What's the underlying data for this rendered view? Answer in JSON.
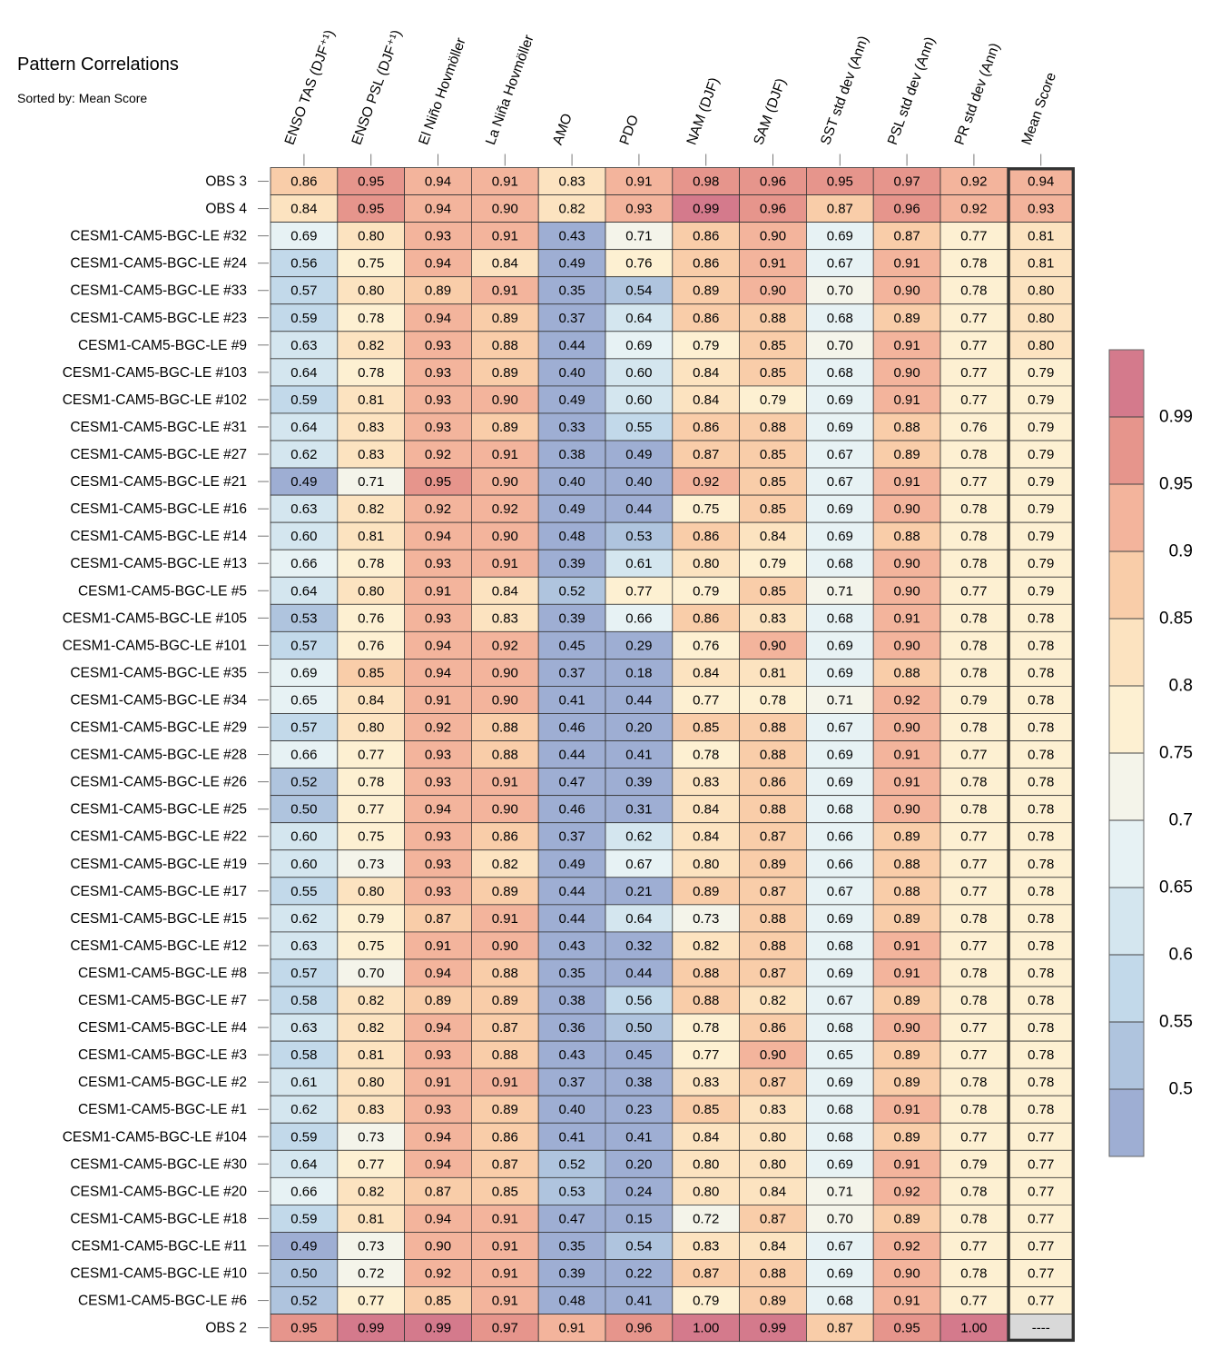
{
  "chart_data": {
    "type": "heatmap",
    "title": "Pattern Correlations",
    "subtitle": "Sorted by: Mean Score",
    "columns": [
      "ENSO TAS (DJF⁺¹)",
      "ENSO PSL (DJF⁺¹)",
      "El Niño Hovmöller",
      "La Niña Hovmöller",
      "AMO",
      "PDO",
      "NAM (DJF)",
      "SAM (DJF)",
      "SST std dev (Ann)",
      "PSL std dev (Ann)",
      "PR std dev (Ann)",
      "Mean Score"
    ],
    "rows": [
      {
        "label": "OBS 3",
        "values": [
          "0.86",
          "0.95",
          "0.94",
          "0.91",
          "0.83",
          "0.91",
          "0.98",
          "0.96",
          "0.95",
          "0.97",
          "0.92",
          "0.94"
        ]
      },
      {
        "label": "OBS 4",
        "values": [
          "0.84",
          "0.95",
          "0.94",
          "0.90",
          "0.82",
          "0.93",
          "0.99",
          "0.96",
          "0.87",
          "0.96",
          "0.92",
          "0.93"
        ]
      },
      {
        "label": "CESM1-CAM5-BGC-LE #32",
        "values": [
          "0.69",
          "0.80",
          "0.93",
          "0.91",
          "0.43",
          "0.71",
          "0.86",
          "0.90",
          "0.69",
          "0.87",
          "0.77",
          "0.81"
        ]
      },
      {
        "label": "CESM1-CAM5-BGC-LE #24",
        "values": [
          "0.56",
          "0.75",
          "0.94",
          "0.84",
          "0.49",
          "0.76",
          "0.86",
          "0.91",
          "0.67",
          "0.91",
          "0.78",
          "0.81"
        ]
      },
      {
        "label": "CESM1-CAM5-BGC-LE #33",
        "values": [
          "0.57",
          "0.80",
          "0.89",
          "0.91",
          "0.35",
          "0.54",
          "0.89",
          "0.90",
          "0.70",
          "0.90",
          "0.78",
          "0.80"
        ]
      },
      {
        "label": "CESM1-CAM5-BGC-LE #23",
        "values": [
          "0.59",
          "0.78",
          "0.94",
          "0.89",
          "0.37",
          "0.64",
          "0.86",
          "0.88",
          "0.68",
          "0.89",
          "0.77",
          "0.80"
        ]
      },
      {
        "label": "CESM1-CAM5-BGC-LE #9",
        "values": [
          "0.63",
          "0.82",
          "0.93",
          "0.88",
          "0.44",
          "0.69",
          "0.79",
          "0.85",
          "0.70",
          "0.91",
          "0.77",
          "0.80"
        ]
      },
      {
        "label": "CESM1-CAM5-BGC-LE #103",
        "values": [
          "0.64",
          "0.78",
          "0.93",
          "0.89",
          "0.40",
          "0.60",
          "0.84",
          "0.85",
          "0.68",
          "0.90",
          "0.77",
          "0.79"
        ]
      },
      {
        "label": "CESM1-CAM5-BGC-LE #102",
        "values": [
          "0.59",
          "0.81",
          "0.93",
          "0.90",
          "0.49",
          "0.60",
          "0.84",
          "0.79",
          "0.69",
          "0.91",
          "0.77",
          "0.79"
        ]
      },
      {
        "label": "CESM1-CAM5-BGC-LE #31",
        "values": [
          "0.64",
          "0.83",
          "0.93",
          "0.89",
          "0.33",
          "0.55",
          "0.86",
          "0.88",
          "0.69",
          "0.88",
          "0.76",
          "0.79"
        ]
      },
      {
        "label": "CESM1-CAM5-BGC-LE #27",
        "values": [
          "0.62",
          "0.83",
          "0.92",
          "0.91",
          "0.38",
          "0.49",
          "0.87",
          "0.85",
          "0.67",
          "0.89",
          "0.78",
          "0.79"
        ]
      },
      {
        "label": "CESM1-CAM5-BGC-LE #21",
        "values": [
          "0.49",
          "0.71",
          "0.95",
          "0.90",
          "0.40",
          "0.40",
          "0.92",
          "0.85",
          "0.67",
          "0.91",
          "0.77",
          "0.79"
        ]
      },
      {
        "label": "CESM1-CAM5-BGC-LE #16",
        "values": [
          "0.63",
          "0.82",
          "0.92",
          "0.92",
          "0.49",
          "0.44",
          "0.75",
          "0.85",
          "0.69",
          "0.90",
          "0.78",
          "0.79"
        ]
      },
      {
        "label": "CESM1-CAM5-BGC-LE #14",
        "values": [
          "0.60",
          "0.81",
          "0.94",
          "0.90",
          "0.48",
          "0.53",
          "0.86",
          "0.84",
          "0.69",
          "0.88",
          "0.78",
          "0.79"
        ]
      },
      {
        "label": "CESM1-CAM5-BGC-LE #13",
        "values": [
          "0.66",
          "0.78",
          "0.93",
          "0.91",
          "0.39",
          "0.61",
          "0.80",
          "0.79",
          "0.68",
          "0.90",
          "0.78",
          "0.79"
        ]
      },
      {
        "label": "CESM1-CAM5-BGC-LE #5",
        "values": [
          "0.64",
          "0.80",
          "0.91",
          "0.84",
          "0.52",
          "0.77",
          "0.79",
          "0.85",
          "0.71",
          "0.90",
          "0.77",
          "0.79"
        ]
      },
      {
        "label": "CESM1-CAM5-BGC-LE #105",
        "values": [
          "0.53",
          "0.76",
          "0.93",
          "0.83",
          "0.39",
          "0.66",
          "0.86",
          "0.83",
          "0.68",
          "0.91",
          "0.78",
          "0.78"
        ]
      },
      {
        "label": "CESM1-CAM5-BGC-LE #101",
        "values": [
          "0.57",
          "0.76",
          "0.94",
          "0.92",
          "0.45",
          "0.29",
          "0.76",
          "0.90",
          "0.69",
          "0.90",
          "0.78",
          "0.78"
        ]
      },
      {
        "label": "CESM1-CAM5-BGC-LE #35",
        "values": [
          "0.69",
          "0.85",
          "0.94",
          "0.90",
          "0.37",
          "0.18",
          "0.84",
          "0.81",
          "0.69",
          "0.88",
          "0.78",
          "0.78"
        ]
      },
      {
        "label": "CESM1-CAM5-BGC-LE #34",
        "values": [
          "0.65",
          "0.84",
          "0.91",
          "0.90",
          "0.41",
          "0.44",
          "0.77",
          "0.78",
          "0.71",
          "0.92",
          "0.79",
          "0.78"
        ]
      },
      {
        "label": "CESM1-CAM5-BGC-LE #29",
        "values": [
          "0.57",
          "0.80",
          "0.92",
          "0.88",
          "0.46",
          "0.20",
          "0.85",
          "0.88",
          "0.67",
          "0.90",
          "0.78",
          "0.78"
        ]
      },
      {
        "label": "CESM1-CAM5-BGC-LE #28",
        "values": [
          "0.66",
          "0.77",
          "0.93",
          "0.88",
          "0.44",
          "0.41",
          "0.78",
          "0.88",
          "0.69",
          "0.91",
          "0.77",
          "0.78"
        ]
      },
      {
        "label": "CESM1-CAM5-BGC-LE #26",
        "values": [
          "0.52",
          "0.78",
          "0.93",
          "0.91",
          "0.47",
          "0.39",
          "0.83",
          "0.86",
          "0.69",
          "0.91",
          "0.78",
          "0.78"
        ]
      },
      {
        "label": "CESM1-CAM5-BGC-LE #25",
        "values": [
          "0.50",
          "0.77",
          "0.94",
          "0.90",
          "0.46",
          "0.31",
          "0.84",
          "0.88",
          "0.68",
          "0.90",
          "0.78",
          "0.78"
        ]
      },
      {
        "label": "CESM1-CAM5-BGC-LE #22",
        "values": [
          "0.60",
          "0.75",
          "0.93",
          "0.86",
          "0.37",
          "0.62",
          "0.84",
          "0.87",
          "0.66",
          "0.89",
          "0.77",
          "0.78"
        ]
      },
      {
        "label": "CESM1-CAM5-BGC-LE #19",
        "values": [
          "0.60",
          "0.73",
          "0.93",
          "0.82",
          "0.49",
          "0.67",
          "0.80",
          "0.89",
          "0.66",
          "0.88",
          "0.77",
          "0.78"
        ]
      },
      {
        "label": "CESM1-CAM5-BGC-LE #17",
        "values": [
          "0.55",
          "0.80",
          "0.93",
          "0.89",
          "0.44",
          "0.21",
          "0.89",
          "0.87",
          "0.67",
          "0.88",
          "0.77",
          "0.78"
        ]
      },
      {
        "label": "CESM1-CAM5-BGC-LE #15",
        "values": [
          "0.62",
          "0.79",
          "0.87",
          "0.91",
          "0.44",
          "0.64",
          "0.73",
          "0.88",
          "0.69",
          "0.89",
          "0.78",
          "0.78"
        ]
      },
      {
        "label": "CESM1-CAM5-BGC-LE #12",
        "values": [
          "0.63",
          "0.75",
          "0.91",
          "0.90",
          "0.43",
          "0.32",
          "0.82",
          "0.88",
          "0.68",
          "0.91",
          "0.77",
          "0.78"
        ]
      },
      {
        "label": "CESM1-CAM5-BGC-LE #8",
        "values": [
          "0.57",
          "0.70",
          "0.94",
          "0.88",
          "0.35",
          "0.44",
          "0.88",
          "0.87",
          "0.69",
          "0.91",
          "0.78",
          "0.78"
        ]
      },
      {
        "label": "CESM1-CAM5-BGC-LE #7",
        "values": [
          "0.58",
          "0.82",
          "0.89",
          "0.89",
          "0.38",
          "0.56",
          "0.88",
          "0.82",
          "0.67",
          "0.89",
          "0.78",
          "0.78"
        ]
      },
      {
        "label": "CESM1-CAM5-BGC-LE #4",
        "values": [
          "0.63",
          "0.82",
          "0.94",
          "0.87",
          "0.36",
          "0.50",
          "0.78",
          "0.86",
          "0.68",
          "0.90",
          "0.77",
          "0.78"
        ]
      },
      {
        "label": "CESM1-CAM5-BGC-LE #3",
        "values": [
          "0.58",
          "0.81",
          "0.93",
          "0.88",
          "0.43",
          "0.45",
          "0.77",
          "0.90",
          "0.65",
          "0.89",
          "0.77",
          "0.78"
        ]
      },
      {
        "label": "CESM1-CAM5-BGC-LE #2",
        "values": [
          "0.61",
          "0.80",
          "0.91",
          "0.91",
          "0.37",
          "0.38",
          "0.83",
          "0.87",
          "0.69",
          "0.89",
          "0.78",
          "0.78"
        ]
      },
      {
        "label": "CESM1-CAM5-BGC-LE #1",
        "values": [
          "0.62",
          "0.83",
          "0.93",
          "0.89",
          "0.40",
          "0.23",
          "0.85",
          "0.83",
          "0.68",
          "0.91",
          "0.78",
          "0.78"
        ]
      },
      {
        "label": "CESM1-CAM5-BGC-LE #104",
        "values": [
          "0.59",
          "0.73",
          "0.94",
          "0.86",
          "0.41",
          "0.41",
          "0.84",
          "0.80",
          "0.68",
          "0.89",
          "0.77",
          "0.77"
        ]
      },
      {
        "label": "CESM1-CAM5-BGC-LE #30",
        "values": [
          "0.64",
          "0.77",
          "0.94",
          "0.87",
          "0.52",
          "0.20",
          "0.80",
          "0.80",
          "0.69",
          "0.91",
          "0.79",
          "0.77"
        ]
      },
      {
        "label": "CESM1-CAM5-BGC-LE #20",
        "values": [
          "0.66",
          "0.82",
          "0.87",
          "0.85",
          "0.53",
          "0.24",
          "0.80",
          "0.84",
          "0.71",
          "0.92",
          "0.78",
          "0.77"
        ]
      },
      {
        "label": "CESM1-CAM5-BGC-LE #18",
        "values": [
          "0.59",
          "0.81",
          "0.94",
          "0.91",
          "0.47",
          "0.15",
          "0.72",
          "0.87",
          "0.70",
          "0.89",
          "0.78",
          "0.77"
        ]
      },
      {
        "label": "CESM1-CAM5-BGC-LE #11",
        "values": [
          "0.49",
          "0.73",
          "0.90",
          "0.91",
          "0.35",
          "0.54",
          "0.83",
          "0.84",
          "0.67",
          "0.92",
          "0.77",
          "0.77"
        ]
      },
      {
        "label": "CESM1-CAM5-BGC-LE #10",
        "values": [
          "0.50",
          "0.72",
          "0.92",
          "0.91",
          "0.39",
          "0.22",
          "0.87",
          "0.88",
          "0.69",
          "0.90",
          "0.78",
          "0.77"
        ]
      },
      {
        "label": "CESM1-CAM5-BGC-LE #6",
        "values": [
          "0.52",
          "0.77",
          "0.85",
          "0.91",
          "0.48",
          "0.41",
          "0.79",
          "0.89",
          "0.68",
          "0.91",
          "0.77",
          "0.77"
        ]
      },
      {
        "label": "OBS 2",
        "values": [
          "0.95",
          "0.99",
          "0.99",
          "0.97",
          "0.91",
          "0.96",
          "1.00",
          "0.99",
          "0.87",
          "0.95",
          "1.00",
          "----"
        ]
      }
    ],
    "colorbar": {
      "bounds": [
        0.45,
        0.5,
        0.55,
        0.6,
        0.65,
        0.7,
        0.75,
        0.8,
        0.85,
        0.9,
        0.95,
        0.99,
        1.0
      ],
      "tick_labels": [
        "0.5",
        "0.55",
        "0.6",
        "0.65",
        "0.7",
        "0.75",
        "0.8",
        "0.85",
        "0.9",
        "0.95",
        "0.99"
      ],
      "colors": [
        "#9eaed3",
        "#afc4de",
        "#c2d9ea",
        "#d4e6ef",
        "#e7f2f4",
        "#f4f4ea",
        "#fdf0d2",
        "#fce3c0",
        "#f9cda9",
        "#f3b49c",
        "#e6958c",
        "#d47a8c"
      ]
    },
    "missing_color": "#d9d9d9",
    "highlight_column": "Mean Score"
  }
}
